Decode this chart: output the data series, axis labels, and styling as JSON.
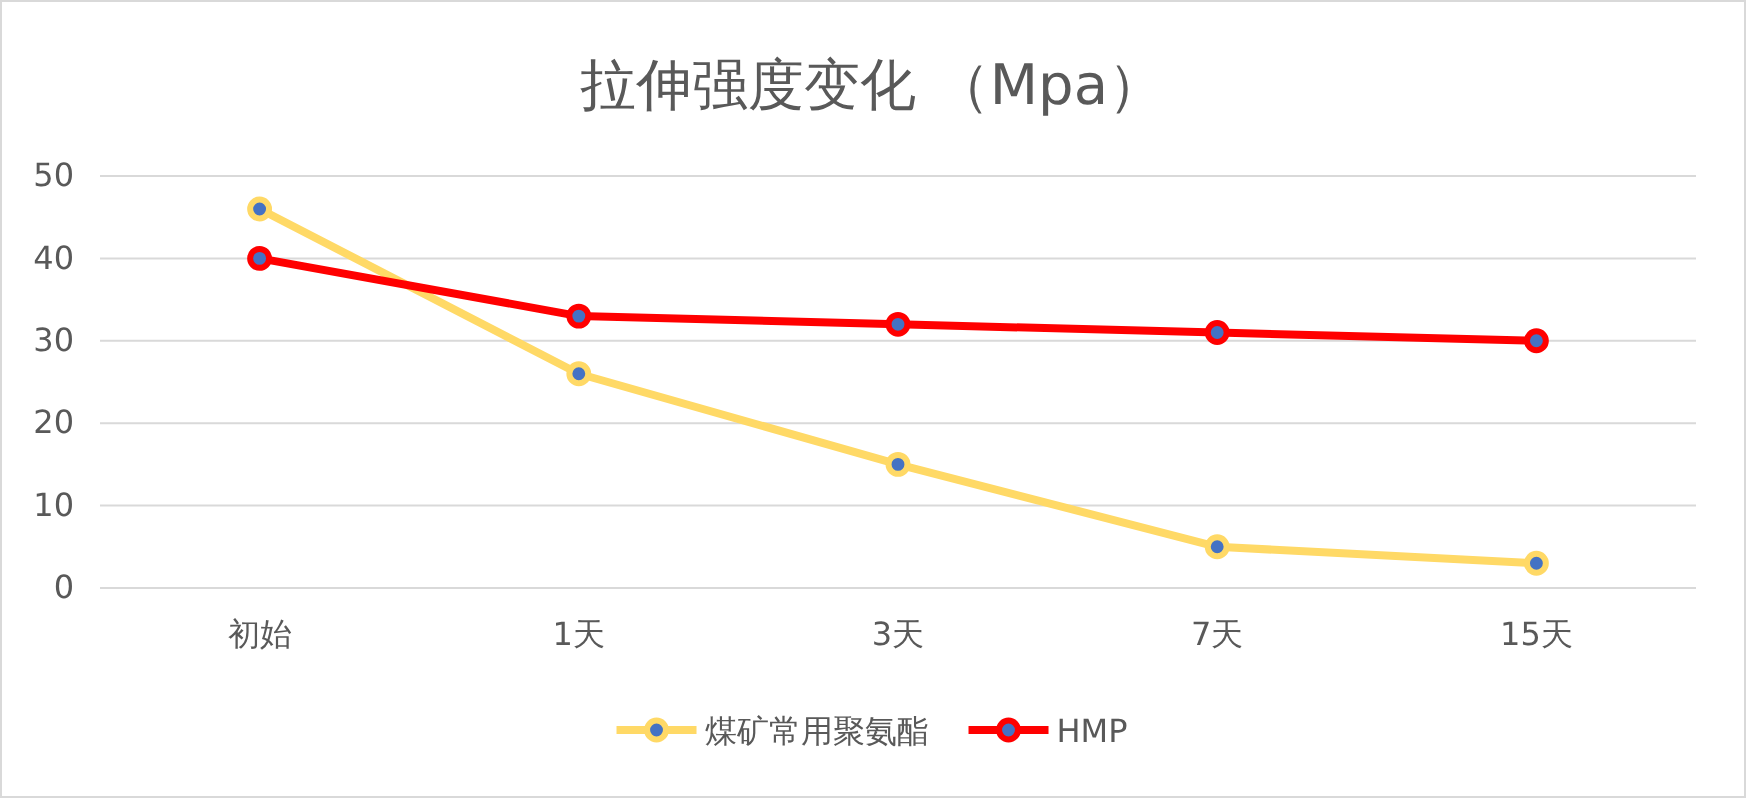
{
  "chart_data": {
    "type": "line",
    "title": "拉伸强度变化 （Mpa）",
    "categories": [
      "初始",
      "1天",
      "3天",
      "7天",
      "15天"
    ],
    "series": [
      {
        "name": "煤矿常用聚氨酯",
        "color": "#ffd966",
        "values": [
          46,
          26,
          15,
          5,
          3
        ]
      },
      {
        "name": "HMP",
        "color": "#ff0000",
        "values": [
          40,
          33,
          32,
          31,
          30
        ]
      }
    ],
    "ylim": [
      0,
      50
    ],
    "yticks": [
      0,
      10,
      20,
      30,
      40,
      50
    ],
    "grid": "y",
    "legend": "bottom",
    "marker": "circle",
    "line_style": "solid"
  }
}
